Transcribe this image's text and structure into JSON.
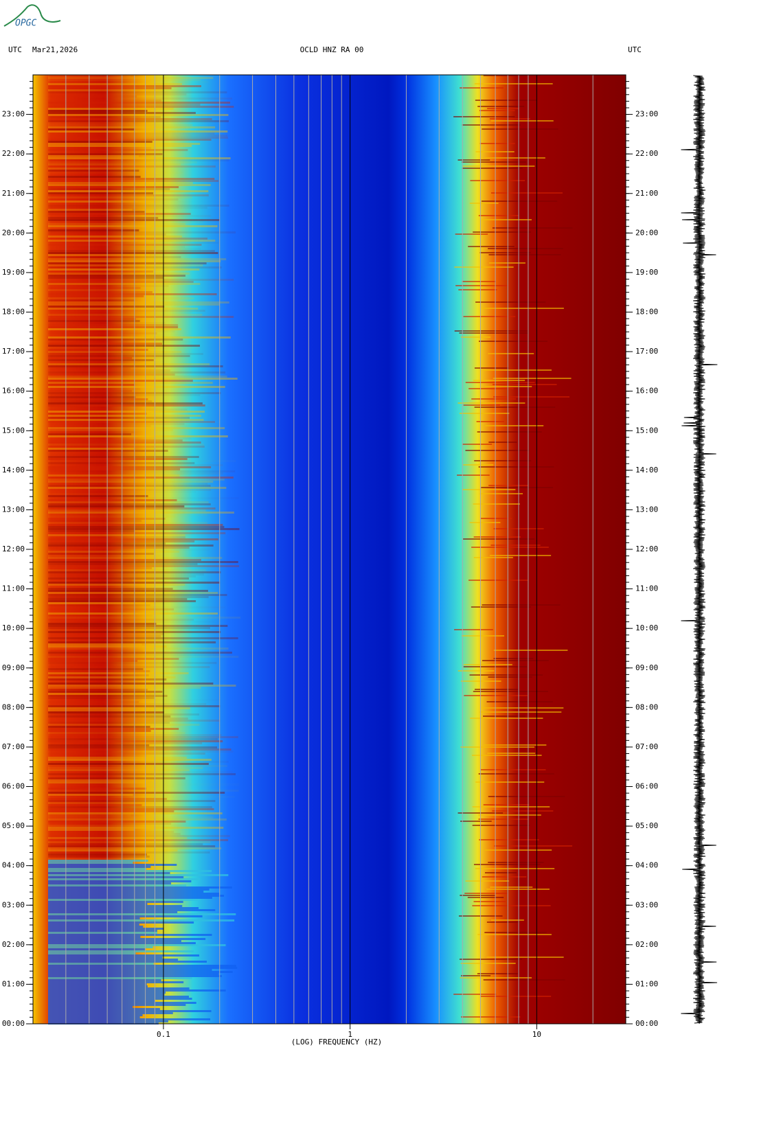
{
  "logo": "OPGC",
  "chart_data": {
    "type": "spectrogram",
    "title": "OCLD HNZ RA 00",
    "left_label": "UTC",
    "date": "Mar21,2026",
    "right_label": "UTC",
    "xlabel": "(LOG) FREQUENCY (HZ)",
    "xscale": "log",
    "xlim": [
      0.02,
      30
    ],
    "xticks": [
      0.1,
      1,
      10
    ],
    "ylim": [
      0,
      24
    ],
    "yticks": [
      {
        "value": 0,
        "label": "00:00"
      },
      {
        "value": 1,
        "label": "01:00"
      },
      {
        "value": 2,
        "label": "02:00"
      },
      {
        "value": 3,
        "label": "03:00"
      },
      {
        "value": 4,
        "label": "04:00"
      },
      {
        "value": 5,
        "label": "05:00"
      },
      {
        "value": 6,
        "label": "06:00"
      },
      {
        "value": 7,
        "label": "07:00"
      },
      {
        "value": 8,
        "label": "08:00"
      },
      {
        "value": 9,
        "label": "09:00"
      },
      {
        "value": 10,
        "label": "10:00"
      },
      {
        "value": 11,
        "label": "11:00"
      },
      {
        "value": 12,
        "label": "12:00"
      },
      {
        "value": 13,
        "label": "13:00"
      },
      {
        "value": 14,
        "label": "14:00"
      },
      {
        "value": 15,
        "label": "15:00"
      },
      {
        "value": 16,
        "label": "16:00"
      },
      {
        "value": 17,
        "label": "17:00"
      },
      {
        "value": 18,
        "label": "18:00"
      },
      {
        "value": 19,
        "label": "19:00"
      },
      {
        "value": 20,
        "label": "20:00"
      },
      {
        "value": 21,
        "label": "21:00"
      },
      {
        "value": 22,
        "label": "22:00"
      },
      {
        "value": 23,
        "label": "23:00"
      }
    ],
    "grid": true
  }
}
